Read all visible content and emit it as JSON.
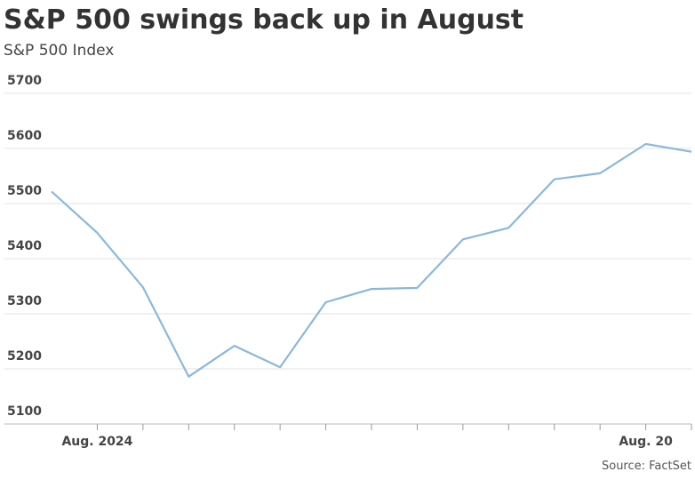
{
  "chart_data": {
    "type": "line",
    "title": "S&P 500 swings back up in August",
    "subtitle": "S&P 500 Index",
    "source": "Source: FactSet",
    "categories": [
      null,
      "Aug. 2024",
      null,
      null,
      null,
      null,
      null,
      null,
      null,
      null,
      null,
      null,
      null,
      "Aug. 20",
      null
    ],
    "series": [
      {
        "name": "S&P 500 Index",
        "color": "#8ab8dc",
        "values": [
          5522,
          5447,
          5348,
          5186,
          5242,
          5203,
          5321,
          5345,
          5347,
          5435,
          5456,
          5544,
          5555,
          5608,
          5594
        ]
      }
    ],
    "ylim": [
      5100,
      5700
    ],
    "yticks": [
      5100,
      5200,
      5300,
      5400,
      5500,
      5600,
      5700
    ],
    "grid": true
  }
}
